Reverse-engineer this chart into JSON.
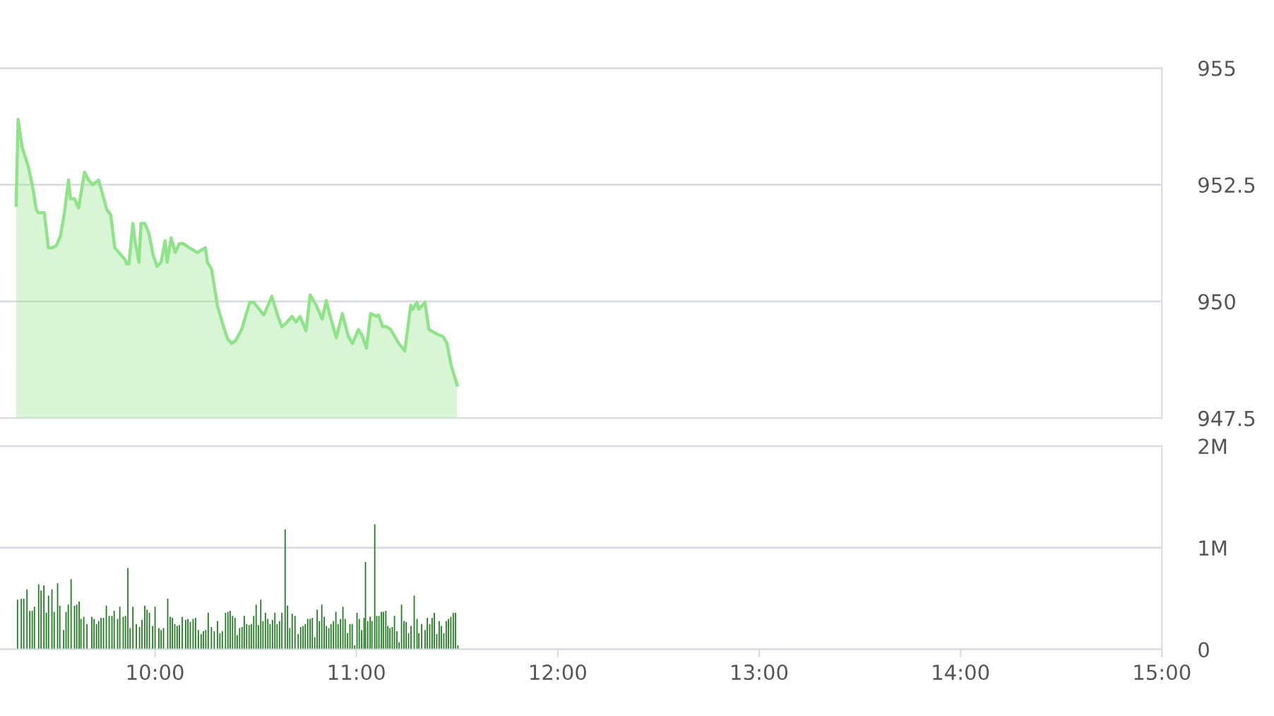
{
  "chart_data": [
    {
      "type": "area",
      "color": "#8fe388",
      "xlim": [
        9.23,
        15
      ],
      "ylim": [
        947.5,
        955
      ],
      "yticks": [
        947.5,
        950,
        952.5,
        955
      ],
      "grid": "y",
      "tick_labels": "y",
      "x": [
        9.31,
        9.32,
        9.34,
        9.37,
        9.39,
        9.41,
        9.42,
        9.45,
        9.47,
        9.49,
        9.51,
        9.53,
        9.55,
        9.57,
        9.58,
        9.6,
        9.62,
        9.65,
        9.67,
        9.69,
        9.72,
        9.76,
        9.78,
        9.8,
        9.83,
        9.85,
        9.86,
        9.87,
        9.89,
        9.9,
        9.92,
        9.93,
        9.95,
        9.97,
        9.99,
        10.01,
        10.03,
        10.05,
        10.06,
        10.08,
        10.1,
        10.12,
        10.14,
        10.17,
        10.21,
        10.25,
        10.26,
        10.28,
        10.29,
        10.31,
        10.34,
        10.36,
        10.38,
        10.4,
        10.43,
        10.47,
        10.49,
        10.54,
        10.58,
        10.61,
        10.63,
        10.65,
        10.68,
        10.7,
        10.72,
        10.75,
        10.77,
        10.8,
        10.83,
        10.85,
        10.87,
        10.9,
        10.93,
        10.96,
        10.98,
        11.01,
        11.03,
        11.05,
        11.07,
        11.1,
        11.11,
        11.13,
        11.15,
        11.17,
        11.21,
        11.24,
        11.27,
        11.28,
        11.3,
        11.31,
        11.34,
        11.36,
        11.4,
        11.43,
        11.45,
        11.47,
        11.5
      ],
      "values": [
        952.06,
        953.9,
        953.3,
        952.9,
        952.5,
        951.97,
        951.9,
        951.9,
        951.15,
        951.15,
        951.2,
        951.4,
        951.9,
        952.6,
        952.2,
        952.2,
        952.0,
        952.77,
        952.6,
        952.5,
        952.6,
        951.97,
        951.85,
        951.15,
        951.0,
        950.9,
        950.8,
        950.8,
        951.67,
        951.3,
        950.84,
        951.67,
        951.67,
        951.45,
        951.0,
        950.75,
        950.84,
        951.3,
        950.84,
        951.36,
        951.05,
        951.24,
        951.24,
        951.15,
        951.05,
        951.15,
        950.84,
        950.7,
        950.44,
        949.9,
        949.46,
        949.2,
        949.1,
        949.16,
        949.4,
        949.98,
        949.98,
        949.71,
        950.11,
        949.68,
        949.46,
        949.53,
        949.68,
        949.56,
        949.68,
        949.37,
        950.14,
        949.92,
        949.62,
        950.02,
        949.68,
        949.22,
        949.74,
        949.25,
        949.1,
        949.4,
        949.25,
        949.0,
        949.74,
        949.68,
        949.71,
        949.46,
        949.46,
        949.4,
        949.1,
        948.94,
        949.92,
        949.83,
        949.98,
        949.83,
        949.98,
        949.4,
        949.3,
        949.25,
        949.1,
        948.64,
        948.21
      ]
    },
    {
      "type": "bar",
      "color": "#1e7b1e",
      "xlim": [
        9.23,
        15
      ],
      "ylim": [
        0,
        2
      ],
      "grid": "y",
      "xticks": [
        {
          "value": 10,
          "label": "10:00"
        },
        {
          "value": 11,
          "label": "11:00"
        },
        {
          "value": 12,
          "label": "12:00"
        },
        {
          "value": 13,
          "label": "13:00"
        },
        {
          "value": 14,
          "label": "14:00"
        },
        {
          "value": 15,
          "label": "15:00"
        }
      ],
      "yticks": [
        0,
        {
          "value": 1,
          "label": "1M"
        },
        {
          "value": 2,
          "label": "2M"
        }
      ],
      "x": [
        9.317,
        9.336,
        9.348,
        9.364,
        9.378,
        9.39,
        9.401,
        9.422,
        9.434,
        9.448,
        9.46,
        9.471,
        9.488,
        9.499,
        9.516,
        9.527,
        9.546,
        9.558,
        9.569,
        9.583,
        9.6,
        9.611,
        9.623,
        9.632,
        9.646,
        9.662,
        9.686,
        9.697,
        9.709,
        9.72,
        9.732,
        9.744,
        9.758,
        9.772,
        9.786,
        9.797,
        9.814,
        9.825,
        9.842,
        9.853,
        9.865,
        9.876,
        9.89,
        9.907,
        9.923,
        9.935,
        9.949,
        9.96,
        9.972,
        9.988,
        10.0,
        10.019,
        10.03,
        10.042,
        10.063,
        10.075,
        10.086,
        10.098,
        10.11,
        10.121,
        10.135,
        10.152,
        10.163,
        10.175,
        10.189,
        10.201,
        10.215,
        10.229,
        10.24,
        10.252,
        10.264,
        10.28,
        10.294,
        10.31,
        10.322,
        10.334,
        10.35,
        10.362,
        10.373,
        10.385,
        10.397,
        10.408,
        10.42,
        10.432,
        10.443,
        10.455,
        10.467,
        10.478,
        10.49,
        10.502,
        10.513,
        10.525,
        10.536,
        10.548,
        10.56,
        10.571,
        10.583,
        10.595,
        10.606,
        10.618,
        10.63,
        10.646,
        10.658,
        10.669,
        10.681,
        10.695,
        10.711,
        10.723,
        10.735,
        10.746,
        10.758,
        10.77,
        10.781,
        10.793,
        10.805,
        10.816,
        10.828,
        10.84,
        10.851,
        10.863,
        10.874,
        10.886,
        10.898,
        10.909,
        10.921,
        10.933,
        10.944,
        10.956,
        10.968,
        10.979,
        10.991,
        11.003,
        11.014,
        11.026,
        11.038,
        11.045,
        11.056,
        11.068,
        11.077,
        11.091,
        11.101,
        11.112,
        11.124,
        11.134,
        11.146,
        11.156,
        11.166,
        11.178,
        11.189,
        11.201,
        11.212,
        11.224,
        11.236,
        11.247,
        11.259,
        11.271,
        11.287,
        11.301,
        11.31,
        11.324,
        11.341,
        11.352,
        11.364,
        11.376,
        11.387,
        11.399,
        11.411,
        11.422,
        11.434,
        11.446,
        11.457,
        11.469,
        11.481,
        11.492,
        11.504
      ],
      "values": [
        0.49,
        0.5,
        0.5,
        0.59,
        0.38,
        0.38,
        0.42,
        0.64,
        0.58,
        0.63,
        0.36,
        0.53,
        0.59,
        0.37,
        0.65,
        0.43,
        0.19,
        0.37,
        0.44,
        0.69,
        0.43,
        0.44,
        0.47,
        0.3,
        0.32,
        0.25,
        0.32,
        0.3,
        0.25,
        0.28,
        0.31,
        0.31,
        0.43,
        0.33,
        0.33,
        0.38,
        0.3,
        0.42,
        0.32,
        0.33,
        0.8,
        0.21,
        0.42,
        0.25,
        0.22,
        0.29,
        0.43,
        0.39,
        0.36,
        0.23,
        0.42,
        0.21,
        0.19,
        0.21,
        0.5,
        0.32,
        0.31,
        0.25,
        0.23,
        0.24,
        0.32,
        0.29,
        0.3,
        0.27,
        0.3,
        0.31,
        0.19,
        0.15,
        0.18,
        0.19,
        0.36,
        0.22,
        0.18,
        0.28,
        0.16,
        0.18,
        0.36,
        0.37,
        0.38,
        0.33,
        0.31,
        0.14,
        0.21,
        0.22,
        0.33,
        0.25,
        0.24,
        0.25,
        0.33,
        0.44,
        0.24,
        0.49,
        0.28,
        0.36,
        0.3,
        0.25,
        0.29,
        0.36,
        0.25,
        0.28,
        0.36,
        1.18,
        0.43,
        0.21,
        0.35,
        0.33,
        0.15,
        0.22,
        0.23,
        0.25,
        0.3,
        0.3,
        0.31,
        0.12,
        0.39,
        0.28,
        0.44,
        0.32,
        0.23,
        0.21,
        0.25,
        0.28,
        0.37,
        0.25,
        0.3,
        0.42,
        0.3,
        0.16,
        0.25,
        0.25,
        0.04,
        0.36,
        0.3,
        0.19,
        0.31,
        0.86,
        0.28,
        0.32,
        0.28,
        1.23,
        0.33,
        0.33,
        0.37,
        0.37,
        0.38,
        0.23,
        0.21,
        0.22,
        0.33,
        0.18,
        0.07,
        0.44,
        0.28,
        0.27,
        0.16,
        0.23,
        0.53,
        0.3,
        0.16,
        0.25,
        0.19,
        0.31,
        0.25,
        0.31,
        0.36,
        0.15,
        0.28,
        0.23,
        0.16,
        0.28,
        0.3,
        0.32,
        0.36,
        0.36,
        0.04
      ]
    }
  ]
}
